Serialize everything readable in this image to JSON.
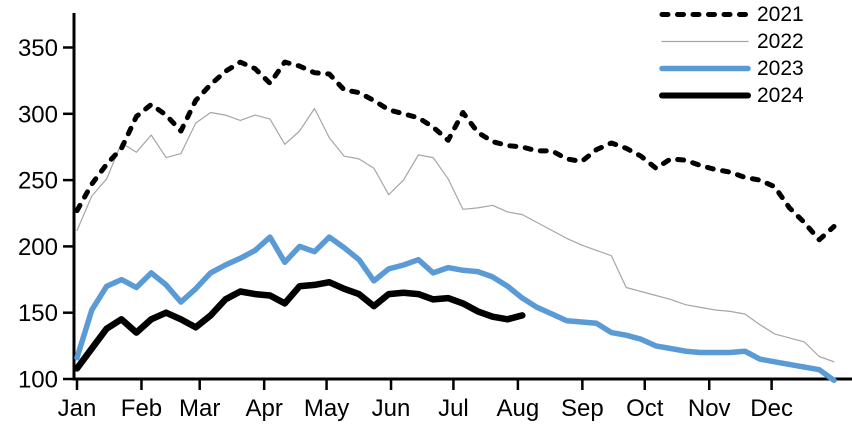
{
  "chart_data": {
    "type": "line",
    "title": "",
    "x_unit": "weekly observations across one year",
    "grid": false,
    "legend_position": "top-right",
    "x_axis": {
      "months": [
        {
          "label": "Jan",
          "day_of_year": 1
        },
        {
          "label": "Feb",
          "day_of_year": 32
        },
        {
          "label": "Mar",
          "day_of_year": 60
        },
        {
          "label": "Apr",
          "day_of_year": 91
        },
        {
          "label": "May",
          "day_of_year": 121
        },
        {
          "label": "Jun",
          "day_of_year": 152
        },
        {
          "label": "Jul",
          "day_of_year": 182
        },
        {
          "label": "Aug",
          "day_of_year": 213
        },
        {
          "label": "Sep",
          "day_of_year": 244
        },
        {
          "label": "Oct",
          "day_of_year": 274
        },
        {
          "label": "Nov",
          "day_of_year": 305
        },
        {
          "label": "Dec",
          "day_of_year": 335
        }
      ]
    },
    "y_axis": {
      "min": 100,
      "max": 375,
      "ticks": [
        {
          "value": 100,
          "label": "100"
        },
        {
          "value": 150,
          "label": "150"
        },
        {
          "value": 200,
          "label": "200"
        },
        {
          "value": 250,
          "label": "250"
        },
        {
          "value": 300,
          "label": "300"
        },
        {
          "value": 350,
          "label": "350"
        }
      ]
    },
    "series": [
      {
        "name": "2021",
        "color": "#000000",
        "style": "dashed",
        "width": 5,
        "values": [
          227,
          247,
          262,
          274,
          298,
          307,
          299,
          287,
          310,
          322,
          332,
          339,
          334,
          323,
          339,
          336,
          331,
          330,
          318,
          316,
          310,
          303,
          300,
          297,
          290,
          280,
          301,
          286,
          279,
          276,
          275,
          272,
          272,
          266,
          264,
          273,
          278,
          274,
          268,
          259,
          266,
          265,
          261,
          258,
          256,
          252,
          250,
          245,
          229,
          218,
          205,
          215
        ]
      },
      {
        "name": "2022",
        "color": "#a6a6a6",
        "style": "solid-thin",
        "width": 1.2,
        "values": [
          212,
          238,
          251,
          278,
          271,
          284,
          267,
          270,
          293,
          301,
          299,
          295,
          299,
          296,
          277,
          287,
          304,
          282,
          268,
          266,
          259,
          239,
          250,
          269,
          267,
          251,
          228,
          229,
          231,
          226,
          224,
          218,
          212,
          206,
          201,
          197,
          193,
          169,
          166,
          163,
          160,
          156,
          154,
          152,
          151,
          149,
          141,
          134,
          131,
          128,
          117,
          113
        ]
      },
      {
        "name": "2023",
        "color": "#5b9bd5",
        "style": "solid",
        "width": 5.5,
        "values": [
          116,
          152,
          170,
          175,
          169,
          180,
          171,
          158,
          168,
          180,
          186,
          191,
          197,
          207,
          188,
          200,
          196,
          207,
          199,
          190,
          174,
          183,
          186,
          190,
          180,
          184,
          182,
          181,
          177,
          170,
          161,
          154,
          149,
          144,
          143,
          142,
          135,
          133,
          130,
          125,
          123,
          121,
          120,
          120,
          120,
          121,
          115,
          113,
          111,
          109,
          107,
          99
        ]
      },
      {
        "name": "2024",
        "color": "#000000",
        "style": "solid",
        "width": 6.5,
        "values": [
          108,
          123,
          138,
          145,
          135,
          145,
          150,
          145,
          139,
          148,
          160,
          166,
          164,
          163,
          157,
          170,
          171,
          173,
          168,
          164,
          155,
          164,
          165,
          164,
          160,
          161,
          157,
          151,
          147,
          145,
          148
        ]
      }
    ]
  }
}
